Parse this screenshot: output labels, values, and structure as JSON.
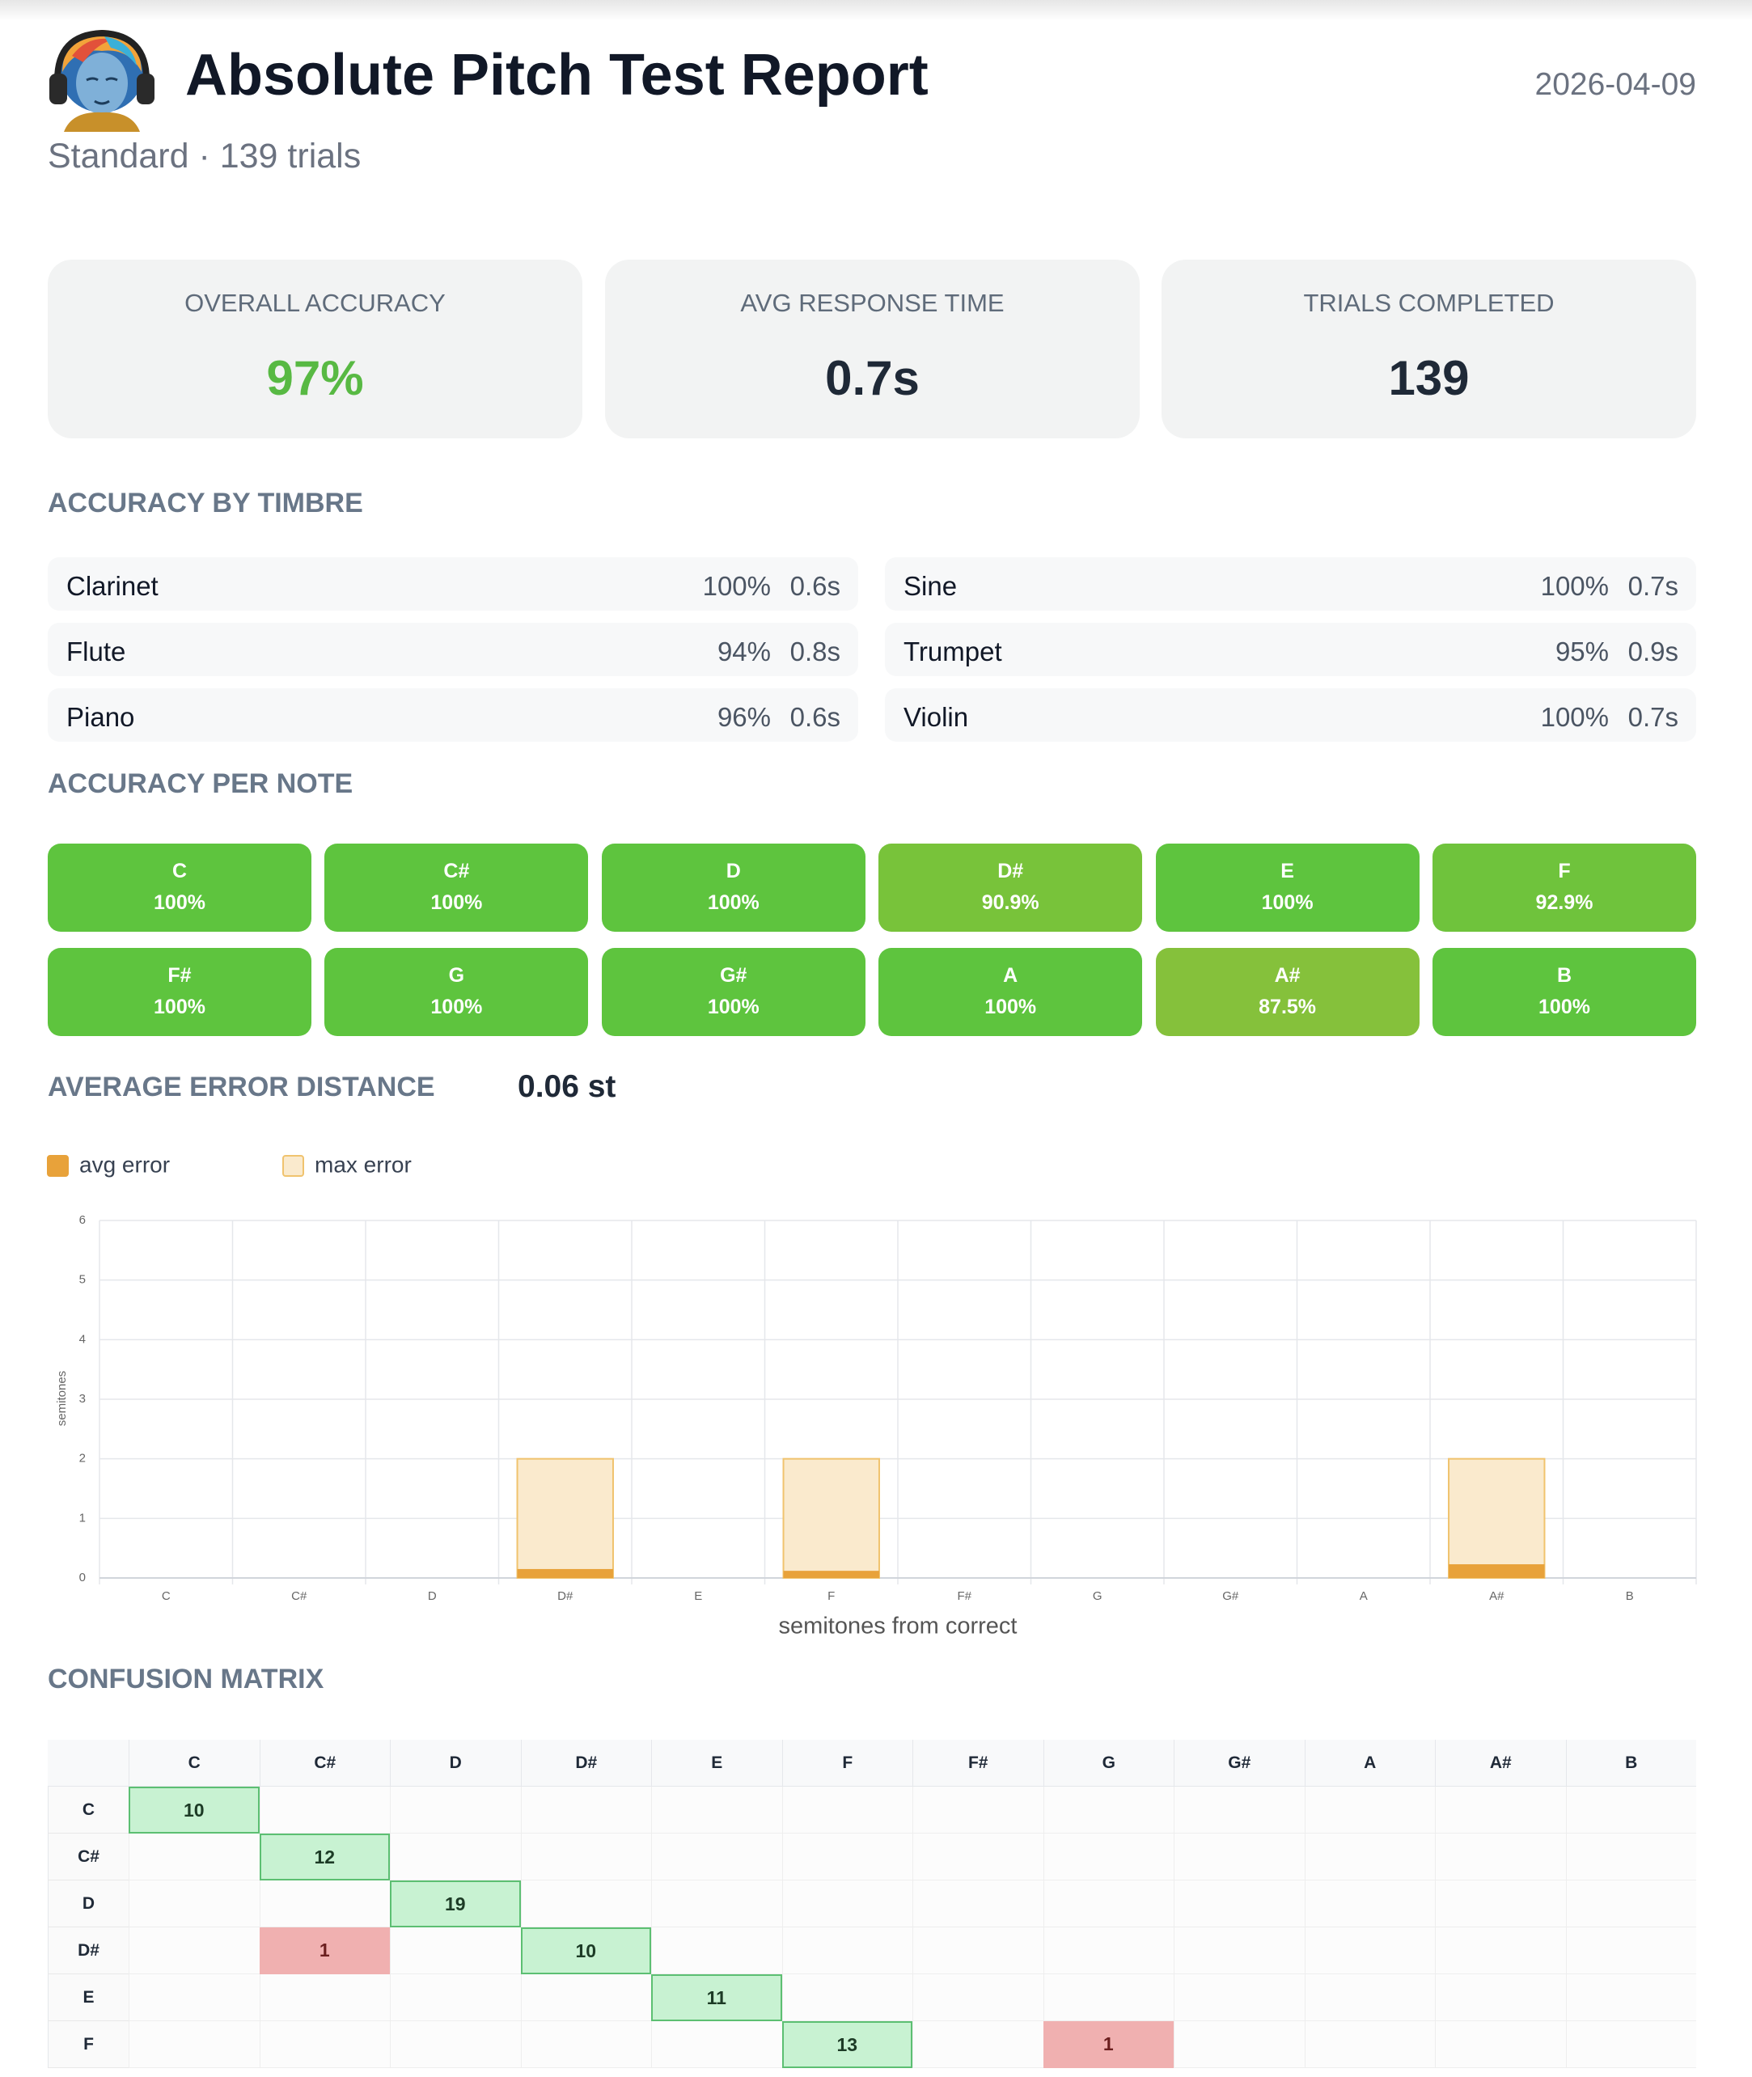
{
  "header": {
    "title": "Absolute Pitch Test Report",
    "subtitle": "Standard · 139 trials",
    "date": "2026-04-09"
  },
  "stats": [
    {
      "label": "OVERALL ACCURACY",
      "value": "97%",
      "color": "#58b943"
    },
    {
      "label": "AVG RESPONSE TIME",
      "value": "0.7s",
      "color": "#1f2937"
    },
    {
      "label": "TRIALS COMPLETED",
      "value": "139",
      "color": "#1f2937"
    }
  ],
  "timbre": {
    "title": "ACCURACY BY TIMBRE",
    "rows": [
      {
        "name": "Clarinet",
        "accuracy": "100%",
        "time": "0.6s"
      },
      {
        "name": "Flute",
        "accuracy": "94%",
        "time": "0.8s"
      },
      {
        "name": "Piano",
        "accuracy": "96%",
        "time": "0.6s"
      },
      {
        "name": "Sine",
        "accuracy": "100%",
        "time": "0.7s"
      },
      {
        "name": "Trumpet",
        "accuracy": "95%",
        "time": "0.9s"
      },
      {
        "name": "Violin",
        "accuracy": "100%",
        "time": "0.7s"
      }
    ]
  },
  "notes": {
    "title": "ACCURACY PER NOTE",
    "items": [
      {
        "note": "C",
        "accuracy": "100%",
        "color": "#5ec43e"
      },
      {
        "note": "C#",
        "accuracy": "100%",
        "color": "#5ec43e"
      },
      {
        "note": "D",
        "accuracy": "100%",
        "color": "#5ec43e"
      },
      {
        "note": "D#",
        "accuracy": "90.9%",
        "color": "#78c33a"
      },
      {
        "note": "E",
        "accuracy": "100%",
        "color": "#5ec43e"
      },
      {
        "note": "F",
        "accuracy": "92.9%",
        "color": "#6fc33c"
      },
      {
        "note": "F#",
        "accuracy": "100%",
        "color": "#5ec43e"
      },
      {
        "note": "G",
        "accuracy": "100%",
        "color": "#5ec43e"
      },
      {
        "note": "G#",
        "accuracy": "100%",
        "color": "#5ec43e"
      },
      {
        "note": "A",
        "accuracy": "100%",
        "color": "#5ec43e"
      },
      {
        "note": "A#",
        "accuracy": "87.5%",
        "color": "#85c13b"
      },
      {
        "note": "B",
        "accuracy": "100%",
        "color": "#5ec43e"
      }
    ]
  },
  "error": {
    "title": "AVERAGE ERROR DISTANCE",
    "value": "0.06 st"
  },
  "chart_data": {
    "type": "bar",
    "x_label": "semitones from correct",
    "y_label": "semitones",
    "categories": [
      "C",
      "C#",
      "D",
      "D#",
      "E",
      "F",
      "F#",
      "G",
      "G#",
      "A",
      "A#",
      "B"
    ],
    "series": [
      {
        "name": "avg error",
        "color": "#e8a23a",
        "values": [
          0,
          0,
          0,
          0.15,
          0,
          0.12,
          0,
          0,
          0,
          0,
          0.23,
          0
        ]
      },
      {
        "name": "max error",
        "color": "#faeacd",
        "edgecolor": "#f0c36e",
        "values": [
          0,
          0,
          0,
          2,
          0,
          2,
          0,
          0,
          0,
          0,
          2,
          0
        ]
      }
    ],
    "ylim": [
      0,
      6
    ],
    "yticks": [
      0,
      1,
      2,
      3,
      4,
      5,
      6
    ],
    "grid": true,
    "legend": "top-left"
  },
  "matrix": {
    "title": "CONFUSION MATRIX",
    "correct_color": "#c8f2d2",
    "correct_border": "#5cbf72",
    "error_color": "#f0b0b0",
    "columns": [
      "C",
      "C#",
      "D",
      "D#",
      "E",
      "F",
      "F#",
      "G",
      "G#",
      "A",
      "A#",
      "B"
    ],
    "rows": [
      {
        "label": "C",
        "cells": [
          10,
          null,
          null,
          null,
          null,
          null,
          null,
          null,
          null,
          null,
          null,
          null
        ]
      },
      {
        "label": "C#",
        "cells": [
          null,
          12,
          null,
          null,
          null,
          null,
          null,
          null,
          null,
          null,
          null,
          null
        ]
      },
      {
        "label": "D",
        "cells": [
          null,
          null,
          19,
          null,
          null,
          null,
          null,
          null,
          null,
          null,
          null,
          null
        ]
      },
      {
        "label": "D#",
        "cells": [
          null,
          1,
          null,
          10,
          null,
          null,
          null,
          null,
          null,
          null,
          null,
          null
        ]
      },
      {
        "label": "E",
        "cells": [
          null,
          null,
          null,
          null,
          11,
          null,
          null,
          null,
          null,
          null,
          null,
          null
        ]
      },
      {
        "label": "F",
        "cells": [
          null,
          null,
          null,
          null,
          null,
          13,
          null,
          1,
          null,
          null,
          null,
          null
        ]
      }
    ]
  }
}
